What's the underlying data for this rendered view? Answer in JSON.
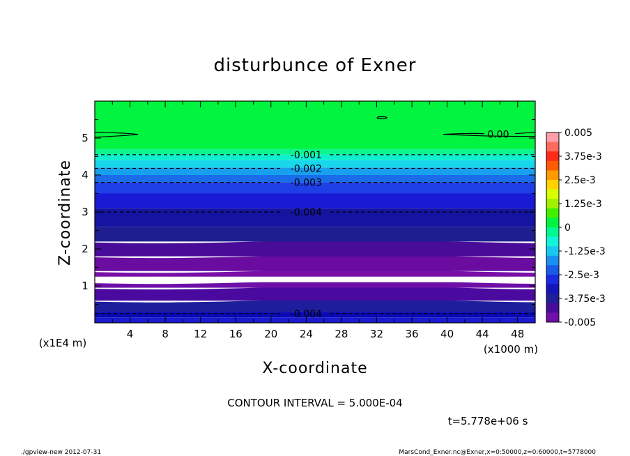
{
  "chart_data": {
    "type": "heatmap",
    "title": "disturbunce of Exner",
    "xlabel": "X-coordinate",
    "ylabel": "Z-coordinate",
    "x_unit": "(x1000 m)",
    "y_unit": "(x1E4 m)",
    "xlim": [
      0,
      50
    ],
    "ylim": [
      0,
      6
    ],
    "x_ticks": [
      4,
      8,
      12,
      16,
      20,
      24,
      28,
      32,
      36,
      40,
      44,
      48
    ],
    "y_ticks": [
      1,
      2,
      3,
      4,
      5
    ],
    "grid": false,
    "bands": [
      {
        "z0": 0.0,
        "z1": 0.15,
        "color": "#1a1ad0"
      },
      {
        "z0": 0.15,
        "z1": 0.3,
        "color": "#0a0ab4"
      },
      {
        "z0": 0.3,
        "z1": 0.6,
        "color": "#1e1e9c"
      },
      {
        "z0": 0.6,
        "z1": 0.95,
        "color": "#4a0aa0"
      },
      {
        "z0": 0.95,
        "z1": 1.1,
        "color": "#6e10a8"
      },
      {
        "z0": 1.1,
        "z1": 1.25,
        "color": "#ffffff"
      },
      {
        "z0": 1.25,
        "z1": 1.4,
        "color": "#7810a8"
      },
      {
        "z0": 1.4,
        "z1": 1.8,
        "color": "#6a0ca0"
      },
      {
        "z0": 1.8,
        "z1": 2.2,
        "color": "#480c98"
      },
      {
        "z0": 2.2,
        "z1": 2.6,
        "color": "#1e1e90"
      },
      {
        "z0": 2.6,
        "z1": 3.1,
        "color": "#1414a0"
      },
      {
        "z0": 3.1,
        "z1": 3.5,
        "color": "#1a1ad4"
      },
      {
        "z0": 3.5,
        "z1": 3.8,
        "color": "#1e3ee6"
      },
      {
        "z0": 3.8,
        "z1": 4.0,
        "color": "#1a6ce8"
      },
      {
        "z0": 4.0,
        "z1": 4.2,
        "color": "#18a0ee"
      },
      {
        "z0": 4.2,
        "z1": 4.4,
        "color": "#18d6ec"
      },
      {
        "z0": 4.4,
        "z1": 4.55,
        "color": "#10eed0"
      },
      {
        "z0": 4.55,
        "z1": 4.7,
        "color": "#0cf690"
      },
      {
        "z0": 4.7,
        "z1": 6.0,
        "color": "#00f440"
      }
    ],
    "contours": [
      {
        "label": "0.00",
        "z": 5.1,
        "label_x": 45.8
      },
      {
        "label": "-0.001",
        "z": 4.55,
        "label_x": 24
      },
      {
        "label": "-0.002",
        "z": 4.18,
        "label_x": 24
      },
      {
        "label": "-0.003",
        "z": 3.8,
        "label_x": 24
      },
      {
        "label": "-0.004",
        "z": 3.0,
        "label_x": 24
      },
      {
        "label": "-0.004",
        "z": 0.25,
        "label_x": 24
      }
    ],
    "colorbar": {
      "labels": [
        "0.005",
        "3.75e-3",
        "2.5e-3",
        "1.25e-3",
        "0",
        "-1.25e-3",
        "-2.5e-3",
        "-3.75e-3",
        "-0.005"
      ],
      "colors": [
        "#ff9ea8",
        "#ff6a5e",
        "#ff2a18",
        "#ff5a00",
        "#ff9a00",
        "#ffd200",
        "#d8ff00",
        "#a0f000",
        "#40f000",
        "#00f440",
        "#00f890",
        "#10f4d8",
        "#18c8f0",
        "#1890f0",
        "#1a5ae8",
        "#1a2ae0",
        "#1414b8",
        "#201e98",
        "#480c98",
        "#7010a8"
      ]
    },
    "annotations": {
      "contour_interval": "CONTOUR INTERVAL = 5.000E-04",
      "time": "t=5.778e+06 s",
      "footer_left": "./gpview-new   2012-07-31",
      "footer_right": "MarsCond_Exner.nc@Exner,x=0:50000,z=0:60000,t=5778000"
    }
  }
}
